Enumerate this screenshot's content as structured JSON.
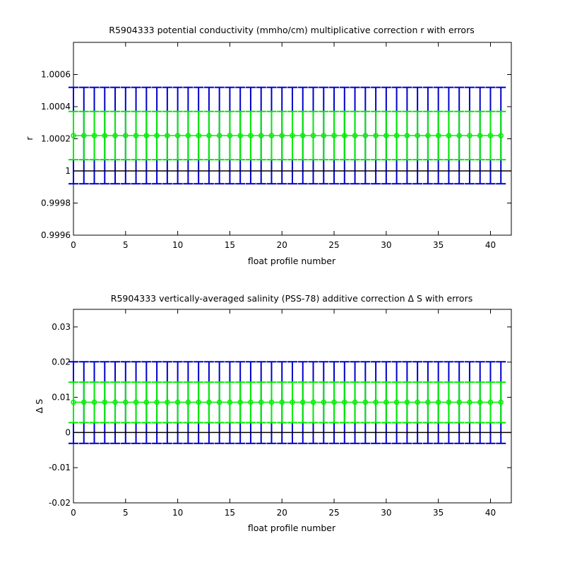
{
  "background": "#ffffff",
  "colors": {
    "blue": "#0000cc",
    "green": "#00ee00",
    "zero_line": "#000000"
  },
  "chart_data": [
    {
      "type": "line",
      "title": "R5904333 potential conductivity (mmho/cm) multiplicative correction r with errors",
      "xlabel": "float profile number",
      "ylabel": "r",
      "xlim": [
        0,
        42
      ],
      "ylim": [
        0.9996,
        1.0008
      ],
      "x_ticks": [
        0,
        5,
        10,
        15,
        20,
        25,
        30,
        35,
        40
      ],
      "x_tick_labels": [
        "0",
        "5",
        "10",
        "15",
        "20",
        "25",
        "30",
        "35",
        "40"
      ],
      "y_ticks": [
        0.9996,
        0.9998,
        1,
        1.0002,
        1.0004,
        1.0006
      ],
      "y_tick_labels": [
        "0.9996",
        "0.9998",
        "1",
        "1.0002",
        "1.0004",
        "1.0006"
      ],
      "reference_line": 1,
      "x_start": 0,
      "x_end": 41,
      "value": 1.00022,
      "green_error_low": 1.00007,
      "green_error_high": 1.00037,
      "blue_error_low": 0.99992,
      "blue_error_high": 1.00052,
      "series": [
        {
          "color": "#00ee00",
          "x": [
            0,
            1,
            2,
            3,
            4,
            5,
            6,
            7,
            8,
            9,
            10,
            11,
            12,
            13,
            14,
            15,
            16,
            17,
            18,
            19,
            20,
            21,
            22,
            23,
            24,
            25,
            26,
            27,
            28,
            29,
            30,
            31,
            32,
            33,
            34,
            35,
            36,
            37,
            38,
            39,
            40,
            41
          ],
          "values": [
            1.00022,
            1.00022,
            1.00022,
            1.00022,
            1.00022,
            1.00022,
            1.00022,
            1.00022,
            1.00022,
            1.00022,
            1.00022,
            1.00022,
            1.00022,
            1.00022,
            1.00022,
            1.00022,
            1.00022,
            1.00022,
            1.00022,
            1.00022,
            1.00022,
            1.00022,
            1.00022,
            1.00022,
            1.00022,
            1.00022,
            1.00022,
            1.00022,
            1.00022,
            1.00022,
            1.00022,
            1.00022,
            1.00022,
            1.00022,
            1.00022,
            1.00022,
            1.00022,
            1.00022,
            1.00022,
            1.00022,
            1.00022,
            1.00022
          ]
        }
      ]
    },
    {
      "type": "line",
      "title": "R5904333 vertically-averaged salinity (PSS-78) additive correction Δ S with errors",
      "xlabel": "float profile number",
      "ylabel": "Δ S",
      "xlim": [
        0,
        42
      ],
      "ylim": [
        -0.02,
        0.035
      ],
      "x_ticks": [
        0,
        5,
        10,
        15,
        20,
        25,
        30,
        35,
        40
      ],
      "x_tick_labels": [
        "0",
        "5",
        "10",
        "15",
        "20",
        "25",
        "30",
        "35",
        "40"
      ],
      "y_ticks": [
        -0.02,
        -0.01,
        0,
        0.01,
        0.02,
        0.03
      ],
      "y_tick_labels": [
        "-0.02",
        "-0.01",
        "0",
        "0.01",
        "0.02",
        "0.03"
      ],
      "reference_line": 0,
      "x_start": 0,
      "x_end": 41,
      "value": 0.0086,
      "green_error_low": 0.0028,
      "green_error_high": 0.0143,
      "blue_error_low": -0.0031,
      "blue_error_high": 0.0201,
      "series": [
        {
          "color": "#00ee00",
          "x": [
            0,
            1,
            2,
            3,
            4,
            5,
            6,
            7,
            8,
            9,
            10,
            11,
            12,
            13,
            14,
            15,
            16,
            17,
            18,
            19,
            20,
            21,
            22,
            23,
            24,
            25,
            26,
            27,
            28,
            29,
            30,
            31,
            32,
            33,
            34,
            35,
            36,
            37,
            38,
            39,
            40,
            41
          ],
          "values": [
            0.0086,
            0.0086,
            0.0086,
            0.0086,
            0.0086,
            0.0086,
            0.0086,
            0.0086,
            0.0086,
            0.0086,
            0.0086,
            0.0086,
            0.0086,
            0.0086,
            0.0086,
            0.0086,
            0.0086,
            0.0086,
            0.0086,
            0.0086,
            0.0086,
            0.0086,
            0.0086,
            0.0086,
            0.0086,
            0.0086,
            0.0086,
            0.0086,
            0.0086,
            0.0086,
            0.0086,
            0.0086,
            0.0086,
            0.0086,
            0.0086,
            0.0086,
            0.0086,
            0.0086,
            0.0086,
            0.0086,
            0.0086,
            0.0086
          ]
        }
      ]
    }
  ]
}
